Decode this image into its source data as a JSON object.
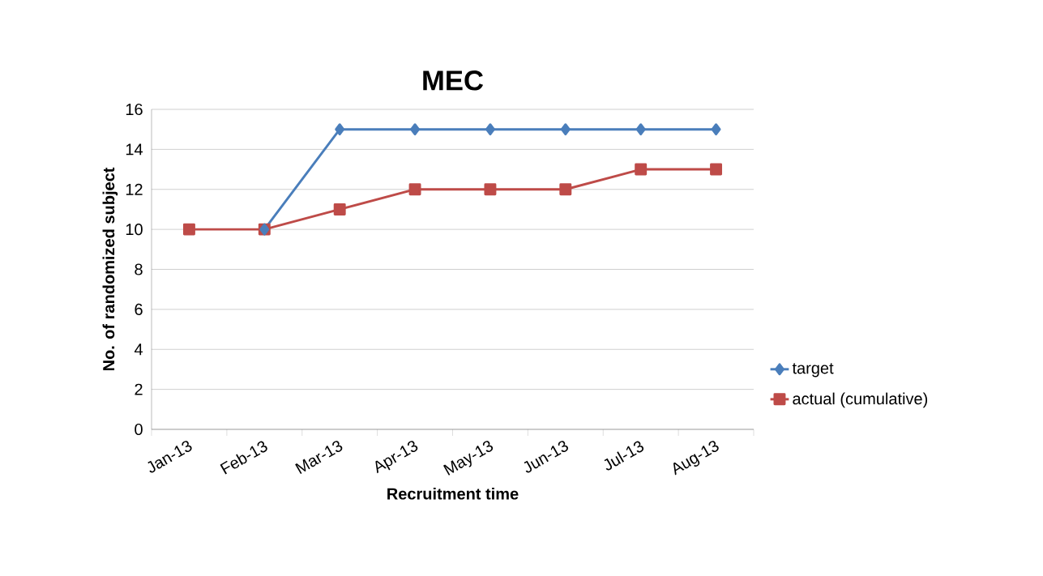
{
  "chart_data": {
    "type": "line",
    "title": "MEC",
    "xlabel": "Recruitment time",
    "ylabel": "No. of randomized subject",
    "categories": [
      "Jan-13",
      "Feb-13",
      "Mar-13",
      "Apr-13",
      "May-13",
      "Jun-13",
      "Jul-13",
      "Aug-13"
    ],
    "series": [
      {
        "name": "target",
        "color": "#4a7ebb",
        "marker": "diamond",
        "values": [
          null,
          10,
          15,
          15,
          15,
          15,
          15,
          15
        ]
      },
      {
        "name": "actual (cumulative)",
        "color": "#be4b48",
        "marker": "square",
        "values": [
          10,
          10,
          11,
          12,
          12,
          12,
          13,
          13
        ]
      }
    ],
    "ylim": [
      0,
      16
    ],
    "yticks": [
      0,
      2,
      4,
      6,
      8,
      10,
      12,
      14,
      16
    ],
    "grid": "y",
    "legend": "right",
    "line_style": "solid"
  }
}
